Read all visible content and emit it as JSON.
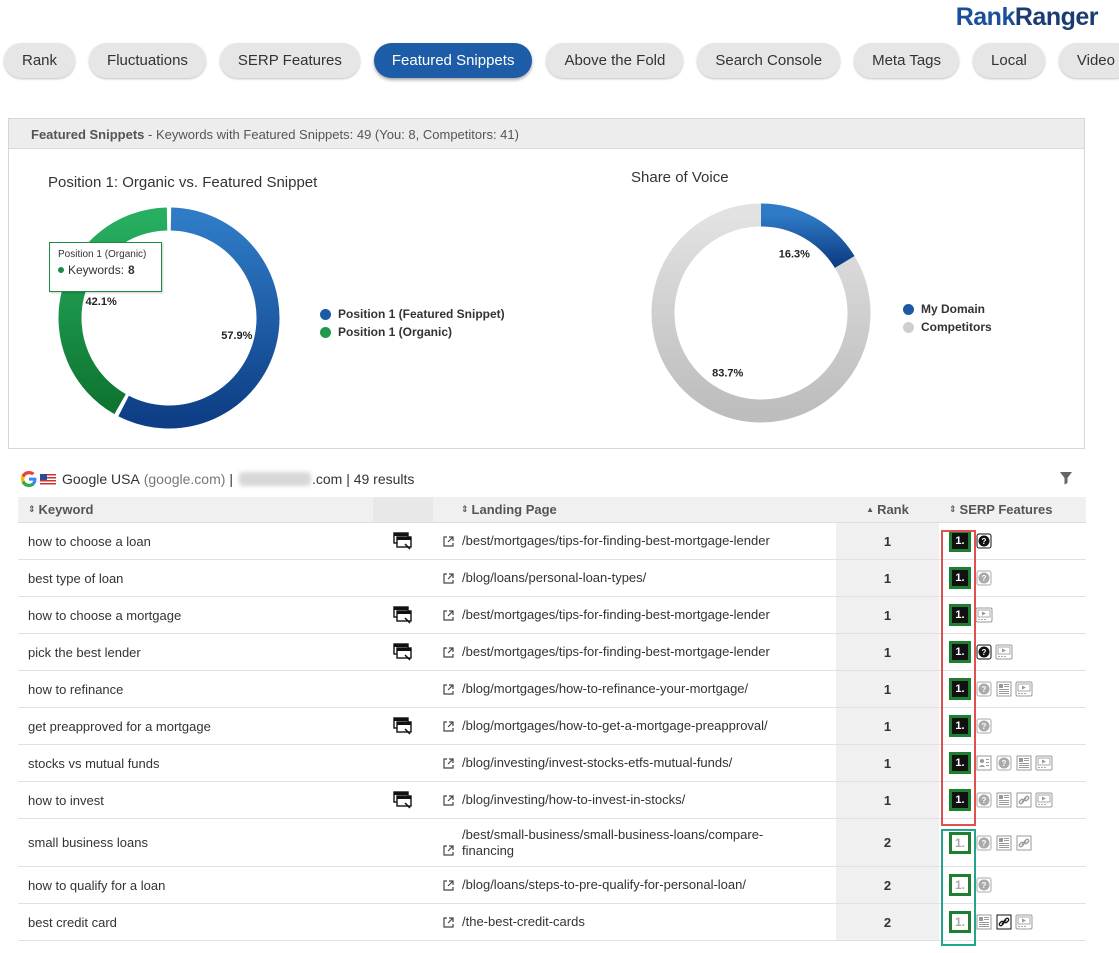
{
  "logo": {
    "rank": "Rank",
    "ranger": "Ranger"
  },
  "tabs": [
    {
      "label": "Rank",
      "active": false
    },
    {
      "label": "Fluctuations",
      "active": false
    },
    {
      "label": "SERP Features",
      "active": false
    },
    {
      "label": "Featured Snippets",
      "active": true
    },
    {
      "label": "Above the Fold",
      "active": false
    },
    {
      "label": "Search Console",
      "active": false
    },
    {
      "label": "Meta Tags",
      "active": false
    },
    {
      "label": "Local",
      "active": false
    },
    {
      "label": "Video",
      "active": false
    }
  ],
  "panel": {
    "title": "Featured Snippets",
    "subtitle": " - Keywords with Featured Snippets: 49 (You: 8, Competitors: 41)"
  },
  "chart_data": [
    {
      "type": "pie",
      "title": "Position 1: Organic vs. Featured Snippet",
      "series": [
        {
          "name": "Position 1 (Featured Snippet)",
          "value": 57.9,
          "label": "57.9%",
          "color": "#1d5aa3"
        },
        {
          "name": "Position 1 (Organic)",
          "value": 42.1,
          "label": "42.1%",
          "color": "#1e9a4c"
        }
      ],
      "tooltip": {
        "title": "Position 1 (Organic)",
        "label": "Keywords:",
        "value": "8"
      }
    },
    {
      "type": "pie",
      "title": "Share of Voice",
      "series": [
        {
          "name": "My Domain",
          "value": 16.3,
          "label": "16.3%",
          "color": "#1d5aa3"
        },
        {
          "name": "Competitors",
          "value": 83.7,
          "label": "83.7%",
          "color": "#cfcfcf"
        }
      ]
    }
  ],
  "results": {
    "engine": "Google USA",
    "domain": "(google.com)",
    "sep": "|",
    "site_suffix": ".com",
    "count": "| 49 results"
  },
  "table": {
    "headers": {
      "keyword": "Keyword",
      "landing": "Landing Page",
      "rank": "Rank",
      "serp": "SERP Features"
    },
    "rows": [
      {
        "keyword": "how to choose a loan",
        "cam": true,
        "landing": "/best/mortgages/tips-for-finding-best-mortgage-lender",
        "rank": "1",
        "fs": "dark",
        "features": [
          "q-dark"
        ]
      },
      {
        "keyword": "best type of loan",
        "cam": false,
        "landing": "/blog/loans/personal-loan-types/",
        "rank": "1",
        "fs": "dark",
        "features": [
          "q"
        ]
      },
      {
        "keyword": "how to choose a mortgage",
        "cam": true,
        "landing": "/best/mortgages/tips-for-finding-best-mortgage-lender",
        "rank": "1",
        "fs": "dark",
        "features": [
          "video"
        ]
      },
      {
        "keyword": "pick the best lender",
        "cam": true,
        "landing": "/best/mortgages/tips-for-finding-best-mortgage-lender",
        "rank": "1",
        "fs": "dark",
        "features": [
          "q-dark",
          "video"
        ]
      },
      {
        "keyword": "how to refinance",
        "cam": false,
        "landing": "/blog/mortgages/how-to-refinance-your-mortgage/",
        "rank": "1",
        "fs": "dark",
        "features": [
          "q",
          "news",
          "video"
        ]
      },
      {
        "keyword": "get preapproved for a mortgage",
        "cam": true,
        "landing": "/blog/mortgages/how-to-get-a-mortgage-preapproval/",
        "rank": "1",
        "fs": "dark",
        "features": [
          "q"
        ]
      },
      {
        "keyword": "stocks vs mutual funds",
        "cam": false,
        "landing": "/blog/investing/invest-stocks-etfs-mutual-funds/",
        "rank": "1",
        "fs": "dark",
        "features": [
          "kp",
          "q",
          "news",
          "video"
        ]
      },
      {
        "keyword": "how to invest",
        "cam": true,
        "landing": "/blog/investing/how-to-invest-in-stocks/",
        "rank": "1",
        "fs": "dark",
        "features": [
          "q",
          "news",
          "link",
          "video"
        ]
      },
      {
        "keyword": "small business loans",
        "cam": false,
        "landing": "/best/small-business/small-business-loans/compare-financing",
        "rank": "2",
        "fs": "light",
        "features": [
          "q",
          "news",
          "link"
        ]
      },
      {
        "keyword": "how to qualify for a loan",
        "cam": false,
        "landing": "/blog/loans/steps-to-pre-qualify-for-personal-loan/",
        "rank": "2",
        "fs": "light",
        "features": [
          "q"
        ]
      },
      {
        "keyword": "best credit card",
        "cam": false,
        "landing": "/the-best-credit-cards",
        "rank": "2",
        "fs": "light",
        "features": [
          "news",
          "link-dark",
          "video"
        ]
      }
    ]
  },
  "colors": {
    "accent": "#1d5da7",
    "green": "#1e9a4c",
    "highlight_red": "#e05050",
    "highlight_teal": "#22a68a"
  }
}
